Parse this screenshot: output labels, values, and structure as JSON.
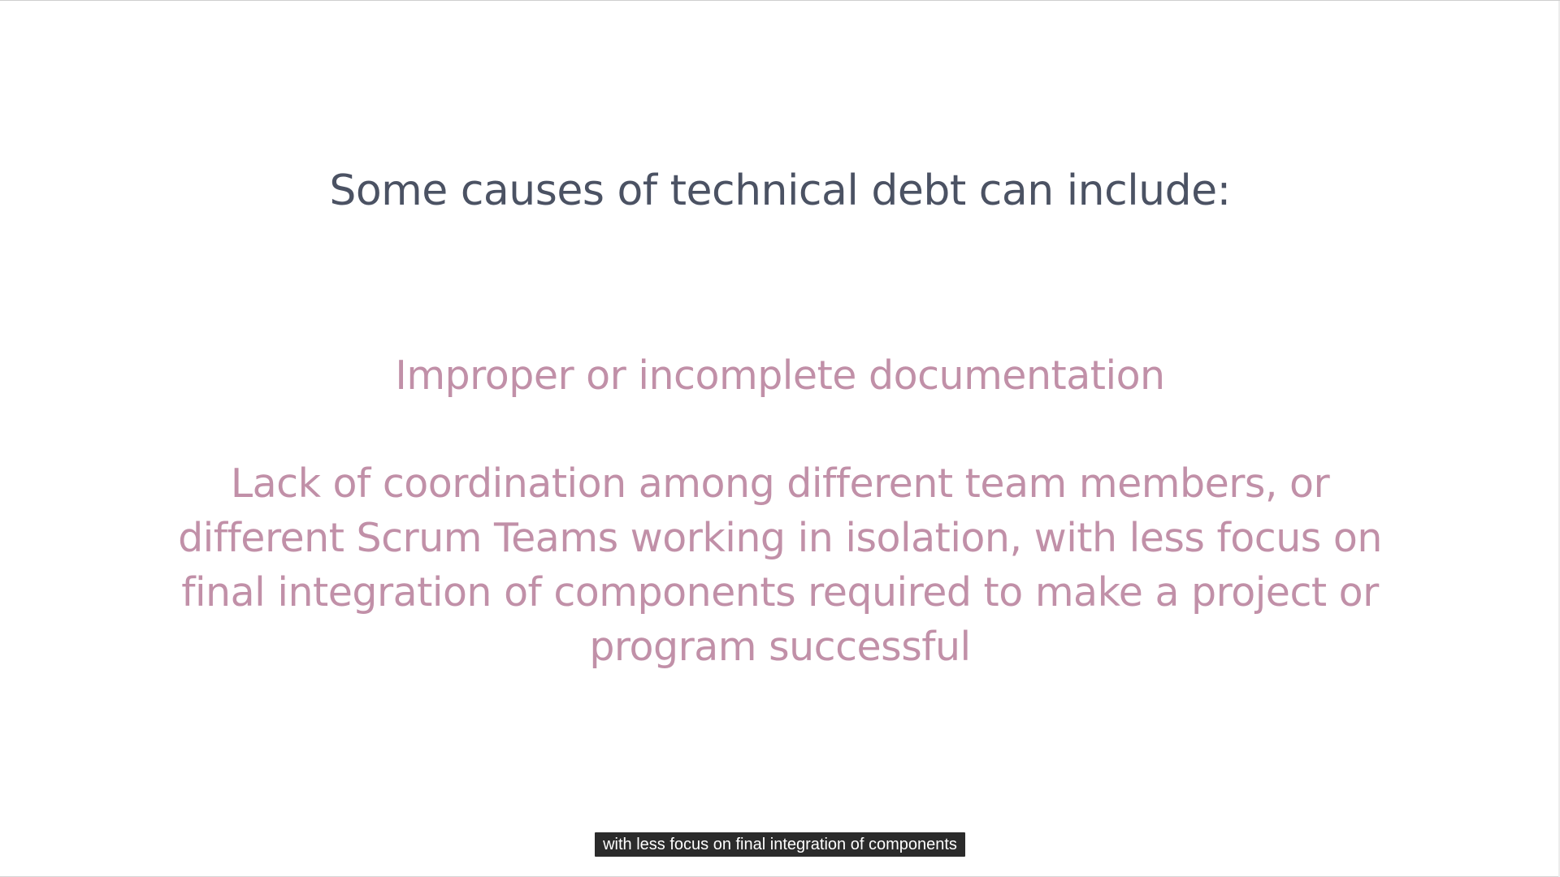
{
  "slide": {
    "title": "Some causes of technical debt can include:",
    "bullets": [
      {
        "text": "Improper or incomplete documentation"
      },
      {
        "text": "Lack of coordination among different team members, or different Scrum Teams working in isolation, with less focus on final integration of components required to make a project or program successful"
      }
    ]
  },
  "caption": {
    "text": "with less focus on final integration of components"
  },
  "colors": {
    "title": "#4b5263",
    "bullet": "#c190a8",
    "caption_bg": "#2b2b2b",
    "caption_text": "#ffffff"
  }
}
